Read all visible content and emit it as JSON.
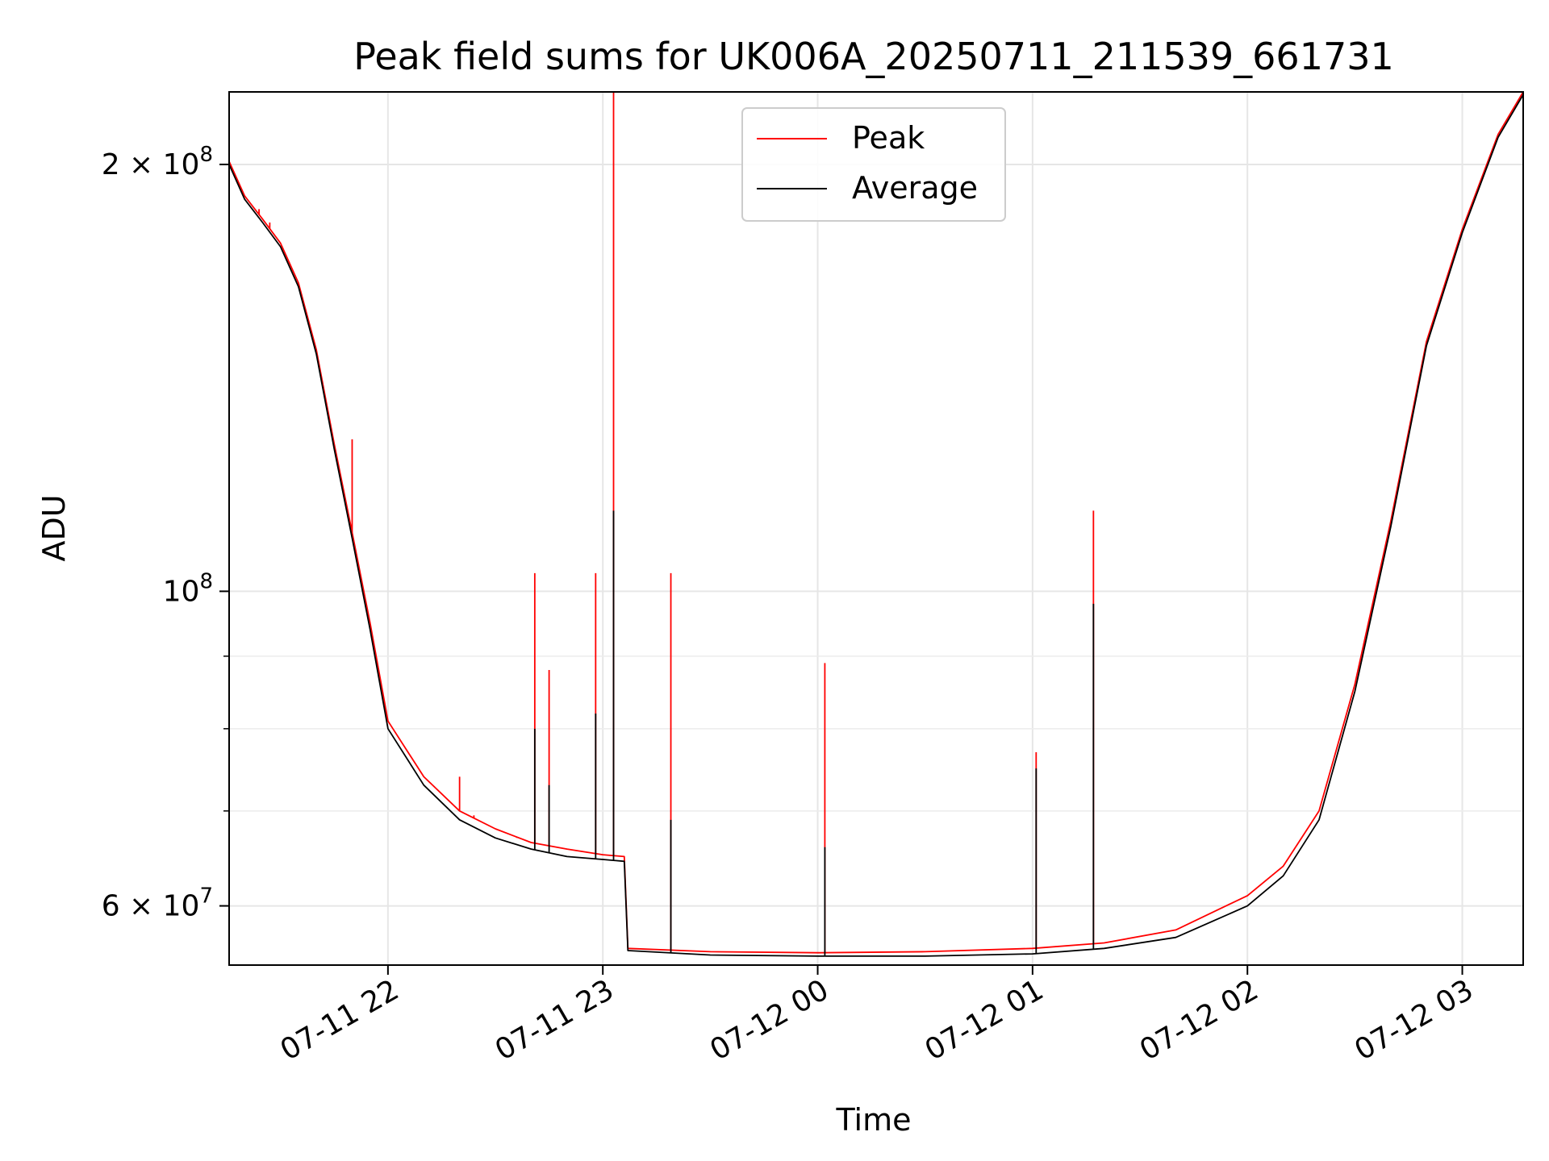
{
  "chart_data": {
    "type": "line",
    "title": "Peak field sums for UK006A_20250711_211539_661731",
    "xlabel": "Time",
    "ylabel": "ADU",
    "y_scale": "log",
    "ylim": [
      54500000,
      225000000
    ],
    "xlim": [
      "2025-07-11 21:15:39",
      "2025-07-12 03:17:00"
    ],
    "x_ticks": [
      {
        "value": "2025-07-11 22:00",
        "label": "07-11 22"
      },
      {
        "value": "2025-07-11 23:00",
        "label": "07-11 23"
      },
      {
        "value": "2025-07-12 00:00",
        "label": "07-12 00"
      },
      {
        "value": "2025-07-12 01:00",
        "label": "07-12 01"
      },
      {
        "value": "2025-07-12 02:00",
        "label": "07-12 02"
      },
      {
        "value": "2025-07-12 03:00",
        "label": "07-12 03"
      }
    ],
    "y_ticks": [
      {
        "value": 60000000,
        "mantissa": "6 × 10",
        "exponent": "7"
      },
      {
        "value": 100000000,
        "mantissa": "10",
        "exponent": "8"
      },
      {
        "value": 200000000,
        "mantissa": "2 × 10",
        "exponent": "8"
      }
    ],
    "y_minor_ticks": [
      70000000,
      80000000,
      90000000
    ],
    "grid": true,
    "legend_position": "top-center",
    "series": [
      {
        "name": "Peak",
        "color": "#ff0000",
        "points": [
          [
            "2025-07-11 21:15:39",
            201000000
          ],
          [
            "2025-07-11 21:20",
            190000000
          ],
          [
            "2025-07-11 21:25",
            183000000
          ],
          [
            "2025-07-11 21:30",
            176000000
          ],
          [
            "2025-07-11 21:35",
            165000000
          ],
          [
            "2025-07-11 21:40",
            148000000
          ],
          [
            "2025-07-11 21:45",
            127000000
          ],
          [
            "2025-07-11 21:50",
            110000000
          ],
          [
            "2025-07-11 21:55",
            95000000
          ],
          [
            "2025-07-11 22:00",
            81000000
          ],
          [
            "2025-07-11 22:10",
            74000000
          ],
          [
            "2025-07-11 22:20",
            70000000
          ],
          [
            "2025-07-11 22:30",
            68000000
          ],
          [
            "2025-07-11 22:40",
            66500000
          ],
          [
            "2025-07-11 22:50",
            65800000
          ],
          [
            "2025-07-11 23:00",
            65200000
          ],
          [
            "2025-07-11 23:06",
            65000000
          ],
          [
            "2025-07-11 23:07",
            56000000
          ],
          [
            "2025-07-11 23:30",
            55700000
          ],
          [
            "2025-07-12 00:00",
            55600000
          ],
          [
            "2025-07-12 00:30",
            55700000
          ],
          [
            "2025-07-12 01:00",
            56000000
          ],
          [
            "2025-07-12 01:20",
            56500000
          ],
          [
            "2025-07-12 01:40",
            57700000
          ],
          [
            "2025-07-12 02:00",
            61000000
          ],
          [
            "2025-07-12 02:10",
            64000000
          ],
          [
            "2025-07-12 02:20",
            70000000
          ],
          [
            "2025-07-12 02:30",
            86000000
          ],
          [
            "2025-07-12 02:40",
            112000000
          ],
          [
            "2025-07-12 02:50",
            150000000
          ],
          [
            "2025-07-12 03:00",
            180000000
          ],
          [
            "2025-07-12 03:10",
            210000000
          ],
          [
            "2025-07-12 03:17",
            225000000
          ]
        ],
        "spikes": [
          [
            "2025-07-11 21:24",
            186000000
          ],
          [
            "2025-07-11 21:27",
            182000000
          ],
          [
            "2025-07-11 21:50",
            128000000
          ],
          [
            "2025-07-11 22:20",
            74000000
          ],
          [
            "2025-07-11 22:24",
            69500000
          ],
          [
            "2025-07-11 22:36",
            67000000
          ],
          [
            "2025-07-11 22:41",
            103000000
          ],
          [
            "2025-07-11 22:45",
            88000000
          ],
          [
            "2025-07-11 22:58",
            103000000
          ],
          [
            "2025-07-11 23:03",
            225000000
          ],
          [
            "2025-07-11 23:19",
            103000000
          ],
          [
            "2025-07-12 00:02",
            89000000
          ],
          [
            "2025-07-12 01:01",
            77000000
          ],
          [
            "2025-07-12 01:17",
            114000000
          ]
        ]
      },
      {
        "name": "Average",
        "color": "#000000",
        "points": [
          [
            "2025-07-11 21:15:39",
            200000000
          ],
          [
            "2025-07-11 21:20",
            189000000
          ],
          [
            "2025-07-11 21:25",
            182000000
          ],
          [
            "2025-07-11 21:30",
            175000000
          ],
          [
            "2025-07-11 21:35",
            164000000
          ],
          [
            "2025-07-11 21:40",
            147000000
          ],
          [
            "2025-07-11 21:45",
            126000000
          ],
          [
            "2025-07-11 21:50",
            109000000
          ],
          [
            "2025-07-11 21:55",
            94000000
          ],
          [
            "2025-07-11 22:00",
            80000000
          ],
          [
            "2025-07-11 22:10",
            73000000
          ],
          [
            "2025-07-11 22:20",
            69000000
          ],
          [
            "2025-07-11 22:30",
            67000000
          ],
          [
            "2025-07-11 22:40",
            65800000
          ],
          [
            "2025-07-11 22:50",
            65000000
          ],
          [
            "2025-07-11 23:00",
            64700000
          ],
          [
            "2025-07-11 23:06",
            64500000
          ],
          [
            "2025-07-11 23:07",
            55800000
          ],
          [
            "2025-07-11 23:30",
            55400000
          ],
          [
            "2025-07-12 00:00",
            55300000
          ],
          [
            "2025-07-12 00:30",
            55300000
          ],
          [
            "2025-07-12 01:00",
            55500000
          ],
          [
            "2025-07-12 01:20",
            56000000
          ],
          [
            "2025-07-12 01:40",
            57000000
          ],
          [
            "2025-07-12 02:00",
            60000000
          ],
          [
            "2025-07-12 02:10",
            63000000
          ],
          [
            "2025-07-12 02:20",
            69000000
          ],
          [
            "2025-07-12 02:30",
            85000000
          ],
          [
            "2025-07-12 02:40",
            111000000
          ],
          [
            "2025-07-12 02:50",
            149000000
          ],
          [
            "2025-07-12 03:00",
            179000000
          ],
          [
            "2025-07-12 03:10",
            209000000
          ],
          [
            "2025-07-12 03:17",
            224000000
          ]
        ],
        "spikes": [
          [
            "2025-07-11 22:41",
            80000000
          ],
          [
            "2025-07-11 22:45",
            73000000
          ],
          [
            "2025-07-11 22:58",
            82000000
          ],
          [
            "2025-07-11 23:03",
            114000000
          ],
          [
            "2025-07-11 23:19",
            69000000
          ],
          [
            "2025-07-12 00:02",
            66000000
          ],
          [
            "2025-07-12 01:01",
            75000000
          ],
          [
            "2025-07-12 01:17",
            98000000
          ]
        ]
      }
    ]
  }
}
